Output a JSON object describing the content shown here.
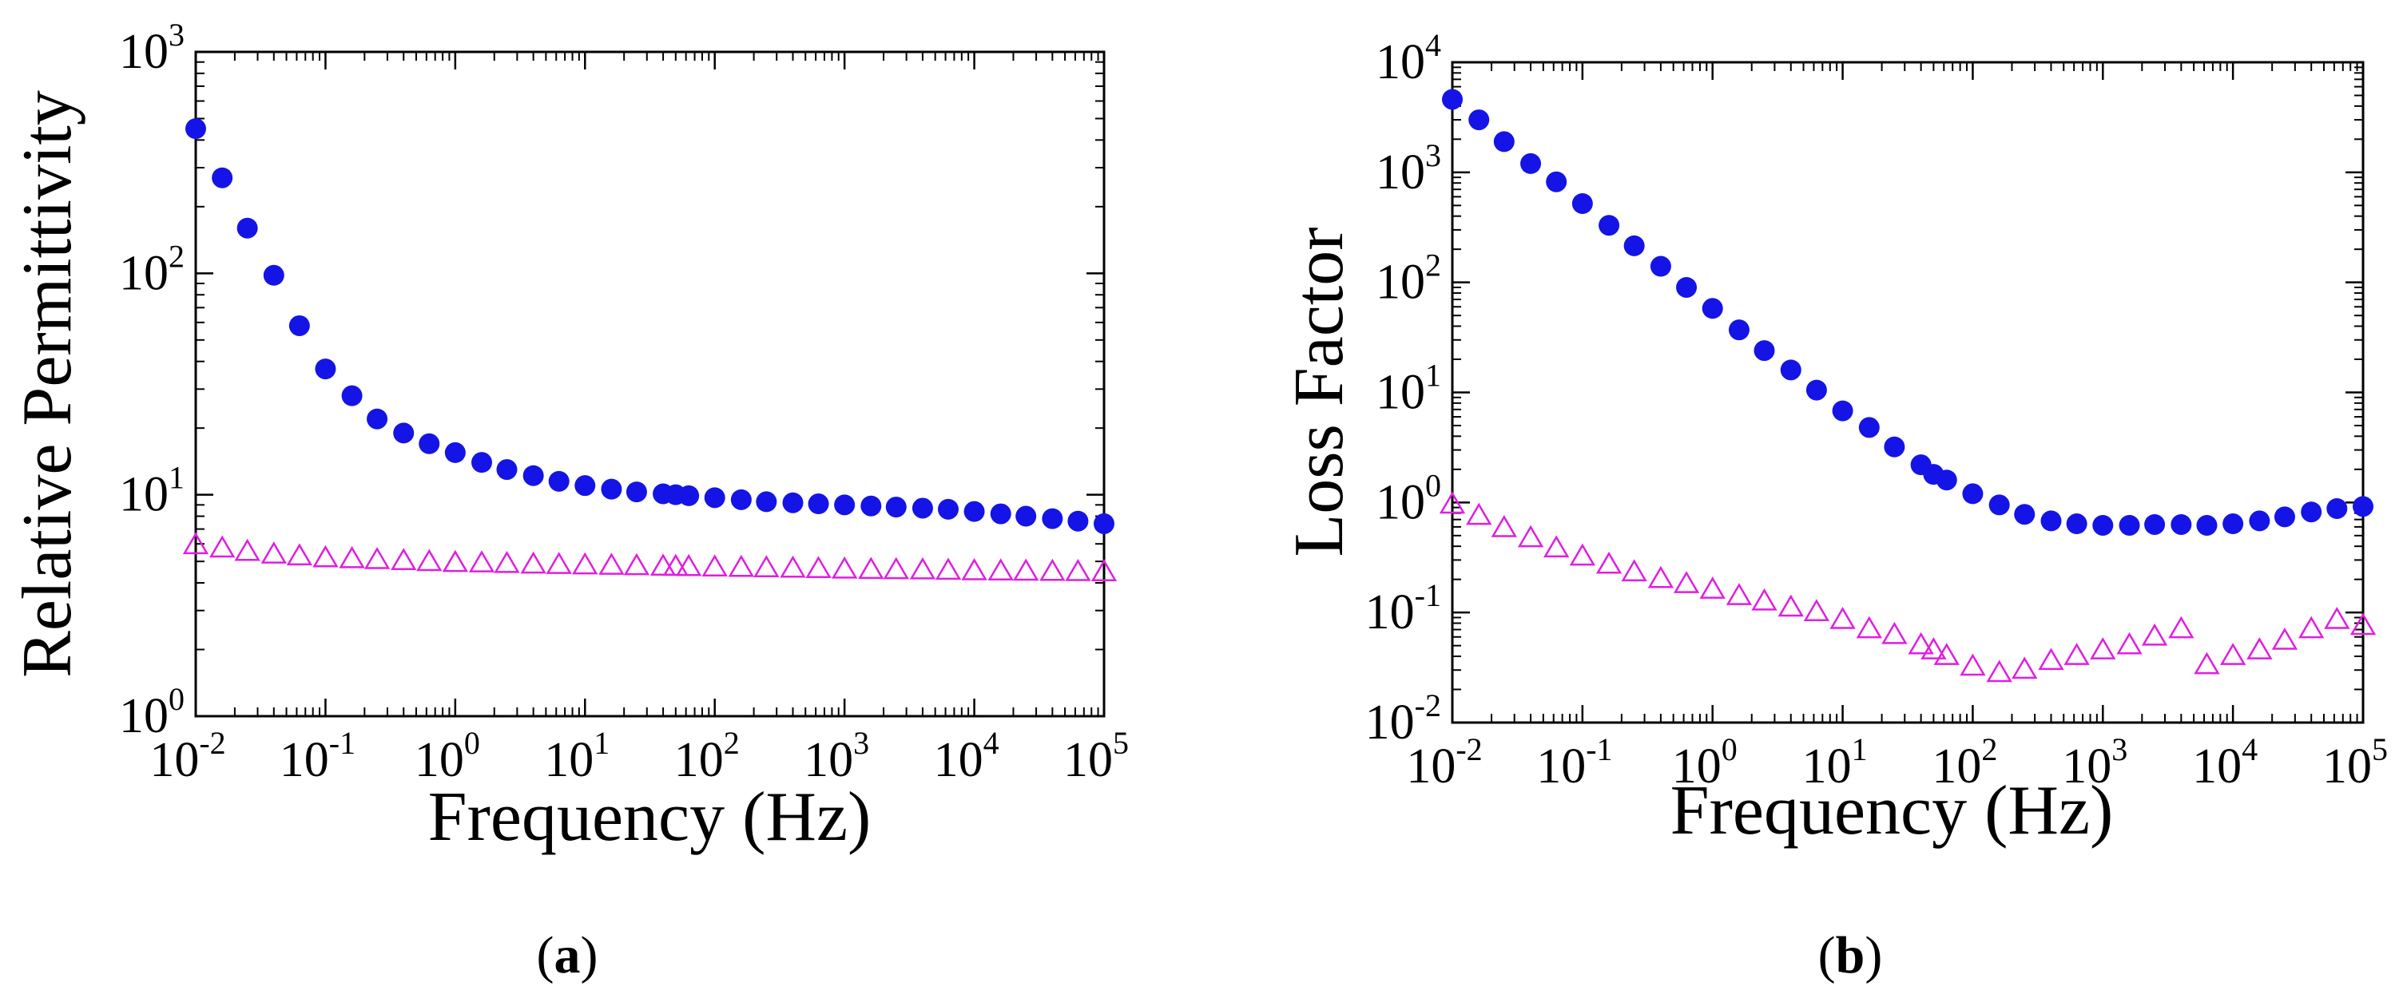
{
  "figure": {
    "panel_labels": [
      "a",
      "b"
    ],
    "marker_colors": {
      "filled_circle": "#1414e6",
      "open_triangle": "#e01ee0"
    }
  },
  "chart_data": [
    {
      "type": "scatter",
      "panel": "a",
      "xlabel": "Frequency (Hz)",
      "ylabel": "Relative Permittivity",
      "xscale": "log",
      "yscale": "log",
      "xlim": [
        0.01,
        100000
      ],
      "ylim": [
        1,
        1000
      ],
      "xticks": [
        {
          "base": "10",
          "exp": "-2"
        },
        {
          "base": "10",
          "exp": "-1"
        },
        {
          "base": "10",
          "exp": "0"
        },
        {
          "base": "10",
          "exp": "1"
        },
        {
          "base": "10",
          "exp": "2"
        },
        {
          "base": "10",
          "exp": "3"
        },
        {
          "base": "10",
          "exp": "4"
        },
        {
          "base": "10",
          "exp": "5"
        }
      ],
      "yticks": [
        {
          "base": "10",
          "exp": "0"
        },
        {
          "base": "10",
          "exp": "1"
        },
        {
          "base": "10",
          "exp": "2"
        },
        {
          "base": "10",
          "exp": "3"
        }
      ],
      "series": [
        {
          "name": "filled circles",
          "marker": "circle",
          "color": "#1414e6",
          "x": [
            0.01,
            0.016,
            0.025,
            0.04,
            0.063,
            0.1,
            0.16,
            0.25,
            0.4,
            0.63,
            1,
            1.6,
            2.5,
            4,
            6.3,
            10,
            16,
            25,
            40,
            50,
            63,
            100,
            160,
            250,
            400,
            630,
            1000,
            1600,
            2500,
            4000,
            6300,
            10000,
            16000,
            25000,
            40000,
            63000,
            100000
          ],
          "y": [
            450,
            270,
            160,
            98,
            58,
            37,
            28,
            22,
            19,
            17,
            15.5,
            14,
            13,
            12.2,
            11.5,
            11,
            10.6,
            10.3,
            10.1,
            10.0,
            9.9,
            9.7,
            9.5,
            9.3,
            9.2,
            9.1,
            9.0,
            8.9,
            8.8,
            8.7,
            8.6,
            8.4,
            8.2,
            8.0,
            7.8,
            7.6,
            7.4
          ]
        },
        {
          "name": "open triangles",
          "marker": "triangle-open",
          "color": "#e01ee0",
          "x": [
            0.01,
            0.016,
            0.025,
            0.04,
            0.063,
            0.1,
            0.16,
            0.25,
            0.4,
            0.63,
            1,
            1.6,
            2.5,
            4,
            6.3,
            10,
            16,
            25,
            40,
            50,
            63,
            100,
            160,
            250,
            400,
            630,
            1000,
            1600,
            2500,
            4000,
            6300,
            10000,
            16000,
            25000,
            40000,
            63000,
            100000
          ],
          "y": [
            5.9,
            5.7,
            5.5,
            5.35,
            5.25,
            5.15,
            5.1,
            5.05,
            5.0,
            4.95,
            4.9,
            4.88,
            4.85,
            4.82,
            4.8,
            4.78,
            4.76,
            4.74,
            4.72,
            4.71,
            4.7,
            4.68,
            4.66,
            4.64,
            4.62,
            4.6,
            4.58,
            4.56,
            4.55,
            4.54,
            4.52,
            4.5,
            4.49,
            4.48,
            4.47,
            4.46,
            4.45
          ]
        }
      ]
    },
    {
      "type": "scatter",
      "panel": "b",
      "xlabel": "Frequency (Hz)",
      "ylabel": "Loss Factor",
      "xscale": "log",
      "yscale": "log",
      "xlim": [
        0.01,
        100000
      ],
      "ylim": [
        0.01,
        10000
      ],
      "xticks": [
        {
          "base": "10",
          "exp": "-2"
        },
        {
          "base": "10",
          "exp": "-1"
        },
        {
          "base": "10",
          "exp": "0"
        },
        {
          "base": "10",
          "exp": "1"
        },
        {
          "base": "10",
          "exp": "2"
        },
        {
          "base": "10",
          "exp": "3"
        },
        {
          "base": "10",
          "exp": "4"
        },
        {
          "base": "10",
          "exp": "5"
        }
      ],
      "yticks": [
        {
          "base": "10",
          "exp": "-2"
        },
        {
          "base": "10",
          "exp": "-1"
        },
        {
          "base": "10",
          "exp": "0"
        },
        {
          "base": "10",
          "exp": "1"
        },
        {
          "base": "10",
          "exp": "2"
        },
        {
          "base": "10",
          "exp": "3"
        },
        {
          "base": "10",
          "exp": "4"
        }
      ],
      "series": [
        {
          "name": "filled circles",
          "marker": "circle",
          "color": "#1414e6",
          "x": [
            0.01,
            0.016,
            0.025,
            0.04,
            0.063,
            0.1,
            0.16,
            0.25,
            0.4,
            0.63,
            1,
            1.6,
            2.5,
            4,
            6.3,
            10,
            16,
            25,
            40,
            50,
            63,
            100,
            160,
            250,
            400,
            630,
            1000,
            1600,
            2500,
            4000,
            6300,
            10000,
            16000,
            25000,
            40000,
            63000,
            100000
          ],
          "y": [
            4600,
            3000,
            1900,
            1200,
            820,
            520,
            330,
            215,
            140,
            90,
            58,
            37,
            24,
            16,
            10.5,
            6.8,
            4.8,
            3.2,
            2.2,
            1.8,
            1.6,
            1.2,
            0.95,
            0.78,
            0.68,
            0.64,
            0.62,
            0.62,
            0.63,
            0.63,
            0.62,
            0.64,
            0.68,
            0.74,
            0.82,
            0.88,
            0.92
          ]
        },
        {
          "name": "open triangles",
          "marker": "triangle-open",
          "color": "#e01ee0",
          "x": [
            0.01,
            0.016,
            0.025,
            0.04,
            0.063,
            0.1,
            0.16,
            0.25,
            0.4,
            0.63,
            1,
            1.6,
            2.5,
            4,
            6.3,
            10,
            16,
            25,
            40,
            50,
            63,
            100,
            160,
            250,
            400,
            630,
            1000,
            1600,
            2500,
            4000,
            6300,
            10000,
            16000,
            25000,
            40000,
            63000,
            100000
          ],
          "y": [
            0.95,
            0.75,
            0.58,
            0.47,
            0.38,
            0.32,
            0.27,
            0.23,
            0.2,
            0.18,
            0.16,
            0.14,
            0.125,
            0.11,
            0.1,
            0.085,
            0.07,
            0.062,
            0.05,
            0.045,
            0.04,
            0.032,
            0.028,
            0.03,
            0.036,
            0.04,
            0.045,
            0.05,
            0.06,
            0.07,
            0.033,
            0.04,
            0.045,
            0.055,
            0.07,
            0.085,
            0.075
          ]
        }
      ]
    }
  ]
}
